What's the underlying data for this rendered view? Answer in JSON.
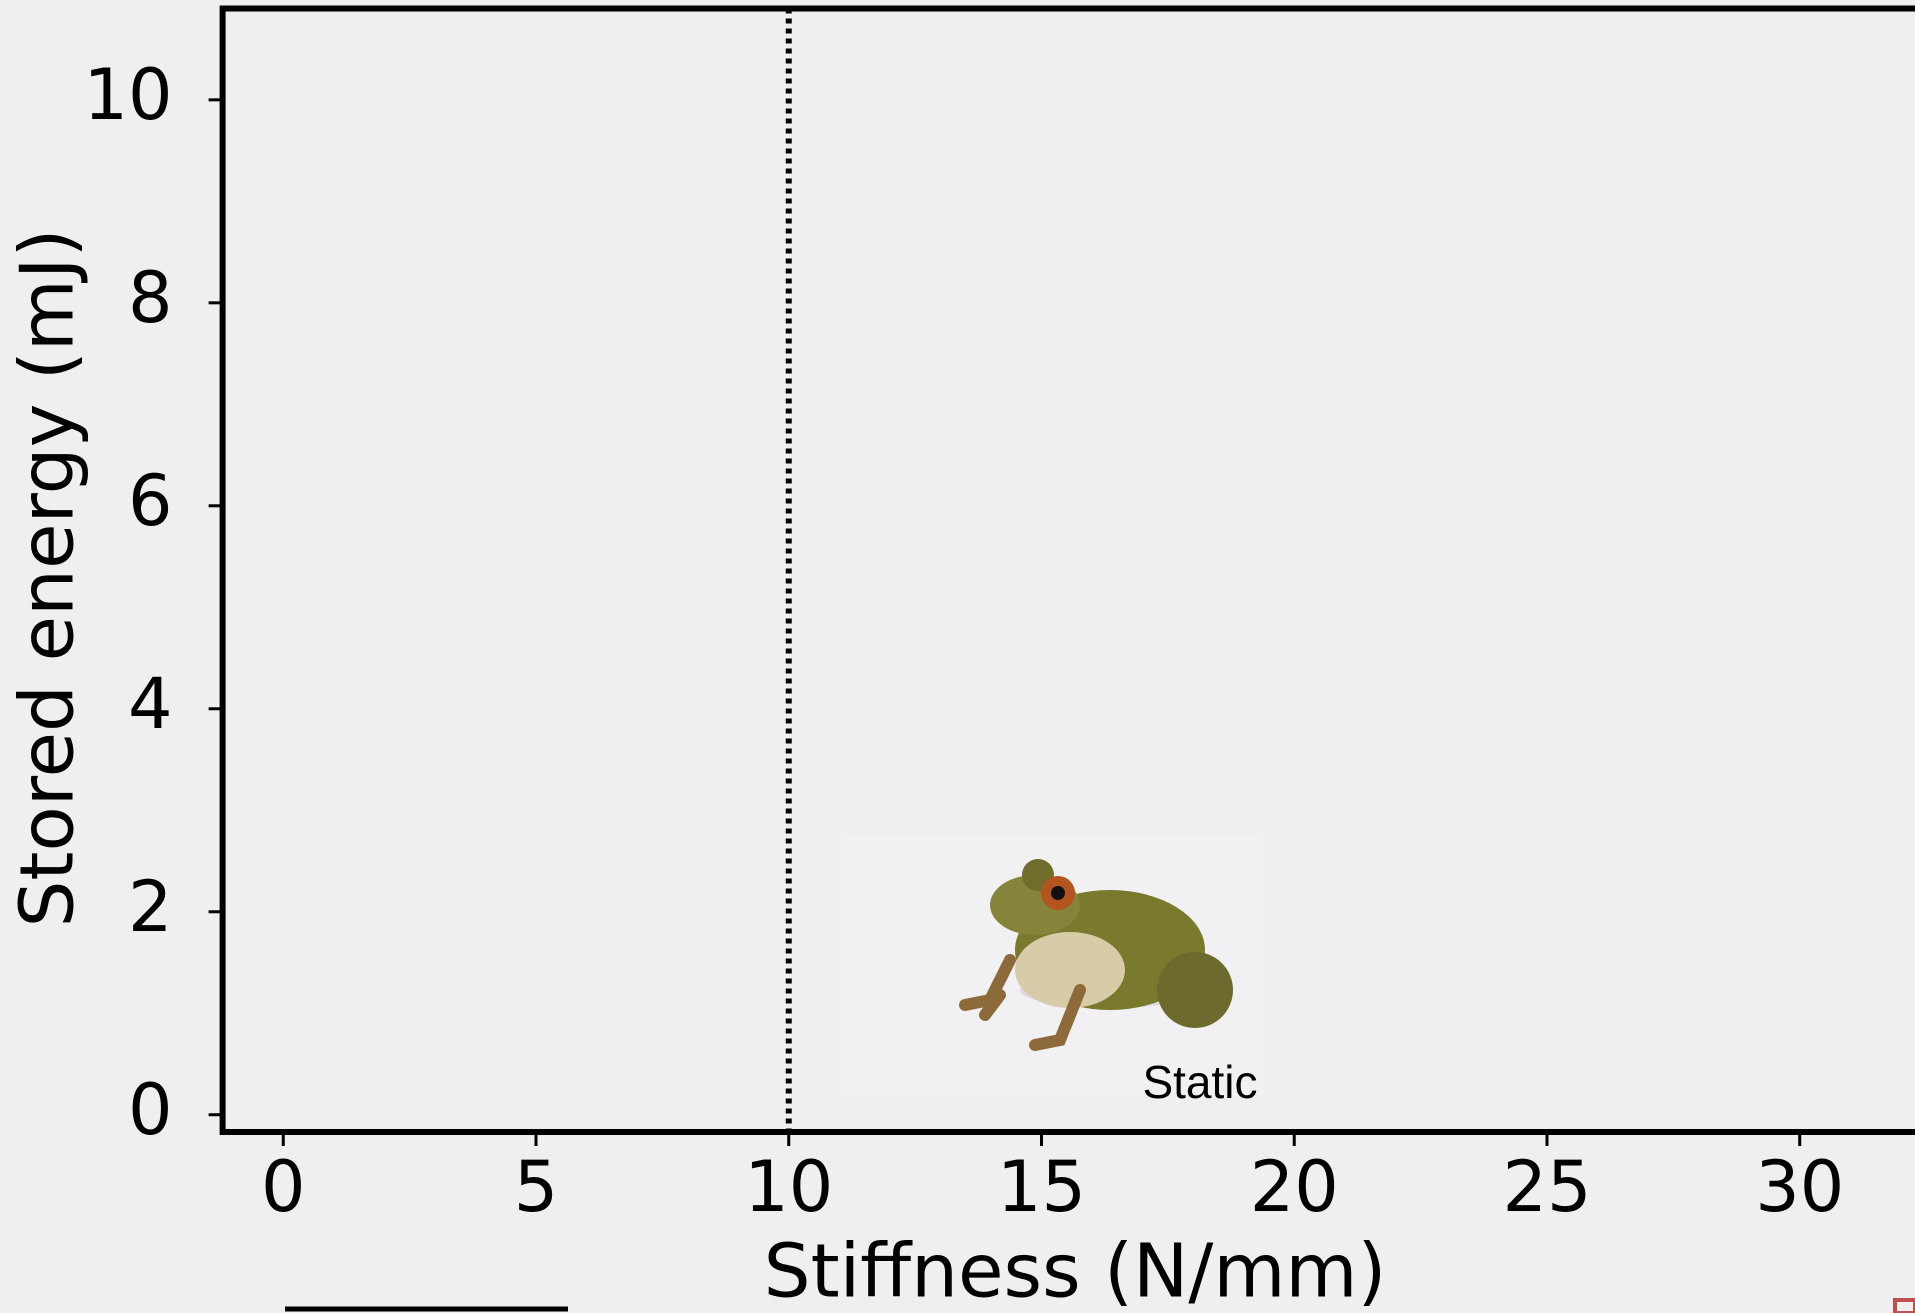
{
  "chart_data": {
    "type": "scatter",
    "xlabel": "Stiffness (N/mm)",
    "ylabel": "Stored energy (mJ)",
    "xlim": [
      -1.2,
      32.3
    ],
    "ylim": [
      -0.17,
      10.9
    ],
    "xticks": [
      0,
      5,
      10,
      15,
      20,
      25,
      30
    ],
    "yticks": [
      0,
      2,
      4,
      6,
      8,
      10
    ],
    "vline": 10,
    "annotation": "Static"
  }
}
